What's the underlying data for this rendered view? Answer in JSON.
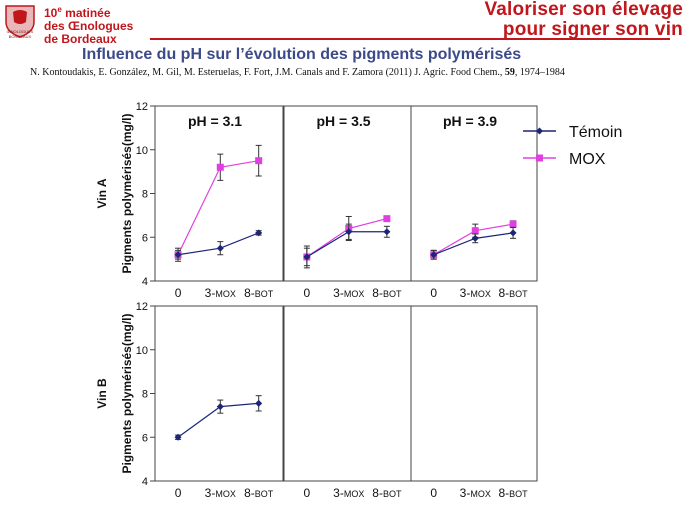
{
  "header": {
    "brand_line1_num": "10",
    "brand_line1_sup": "e",
    "brand_line1_rest": " matinée",
    "brand_line2": "des Œnologues",
    "brand_line3": "de Bordeaux",
    "logo_text1": "ŒNOLOGUES",
    "logo_text2": "BORDEAUX",
    "tagline_line1": "Valoriser son élevage",
    "tagline_line2": "pour signer son vin",
    "accent_color": "#c0161c"
  },
  "slide": {
    "title": "Influence du pH sur l’évolution des pigments polymérisés",
    "citation_main": "N. Kontoudakis, E. González, M. Gil, M. Esteruelas, F. Fort, J.M. Canals and F. Zamora (2011) J. Agric. Food Chem., ",
    "citation_volume": "59",
    "citation_pages": ", 1974–1984"
  },
  "chart_data": {
    "type": "line",
    "ylabel": "Pigments polymérisés(mg/l)",
    "ylim": [
      4,
      12
    ],
    "yticks": [
      "4",
      "6",
      "8",
      "10",
      "12"
    ],
    "categories": [
      "0",
      "3-MOX",
      "8-BOT"
    ],
    "category_parts": [
      [
        "0",
        ""
      ],
      [
        "3-",
        "MOX"
      ],
      [
        "8-",
        "BOT"
      ]
    ],
    "row_labels": [
      "Vin A",
      "Vin B"
    ],
    "column_titles": [
      "pH = 3.1",
      "pH = 3.5",
      "pH = 3.9"
    ],
    "legend_position": "top-right",
    "series_styles": [
      {
        "name": "Témoin",
        "color": "#1c2677",
        "marker": "diamond"
      },
      {
        "name": "MOX",
        "color": "#e040e0",
        "marker": "square"
      }
    ],
    "panels": [
      {
        "row": 0,
        "col": 0,
        "series": [
          {
            "name": "Témoin",
            "values": [
              5.2,
              5.5,
              6.2
            ],
            "errors": [
              0.2,
              0.3,
              0.1
            ]
          },
          {
            "name": "MOX",
            "values": [
              5.2,
              9.2,
              9.5
            ],
            "errors": [
              0.3,
              0.6,
              0.7
            ]
          }
        ]
      },
      {
        "row": 0,
        "col": 1,
        "series": [
          {
            "name": "Témoin",
            "values": [
              5.1,
              6.25,
              6.25
            ],
            "errors": [
              0.5,
              0.35,
              0.25
            ]
          },
          {
            "name": "MOX",
            "values": [
              5.1,
              6.4,
              6.85
            ],
            "errors": [
              0.4,
              0.55,
              0.1
            ]
          }
        ]
      },
      {
        "row": 0,
        "col": 2,
        "series": [
          {
            "name": "Témoin",
            "values": [
              5.2,
              5.95,
              6.2
            ],
            "errors": [
              0.2,
              0.2,
              0.25
            ]
          },
          {
            "name": "MOX",
            "values": [
              5.2,
              6.3,
              6.6
            ],
            "errors": [
              0.2,
              0.3,
              0.15
            ]
          }
        ]
      },
      {
        "row": 1,
        "col": 0,
        "series": [
          {
            "name": "Témoin",
            "values": [
              6.0,
              7.4,
              7.55
            ],
            "errors": [
              0.1,
              0.3,
              0.35
            ]
          }
        ]
      },
      {
        "row": 1,
        "col": 1,
        "series": []
      },
      {
        "row": 1,
        "col": 2,
        "series": []
      }
    ]
  }
}
